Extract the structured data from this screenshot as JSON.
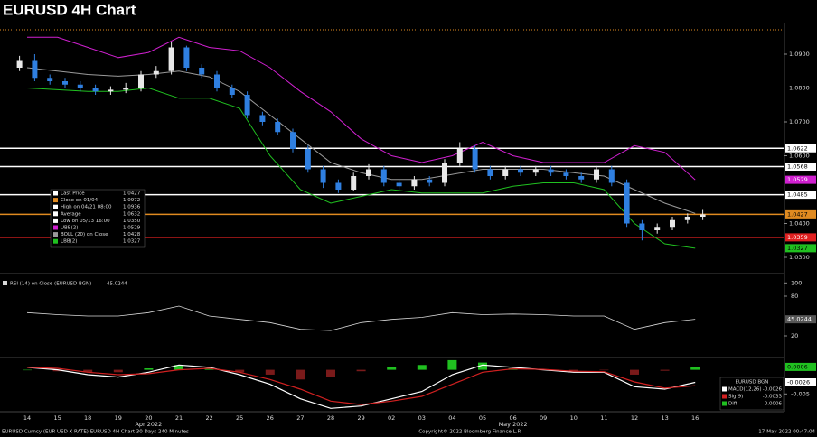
{
  "title": "EURUSD 4H Chart",
  "footer": {
    "left": "EURUSD Curncy (EUR-USD X-RATE) EURUSD 4H Chart 30 Days 240 Minutes",
    "center": "Copyright© 2022 Bloomberg Finance L.P.",
    "right": "17-May-2022 00:47:04"
  },
  "chart_data": [
    {
      "type": "candlestick",
      "categories": [
        "14",
        "15",
        "18",
        "19",
        "20",
        "21",
        "22",
        "25",
        "26",
        "27",
        "28",
        "29",
        "02",
        "03",
        "04",
        "05",
        "06",
        "09",
        "10",
        "11",
        "12",
        "13",
        "16"
      ],
      "months": [
        null,
        null,
        null,
        null,
        "Apr 2022",
        null,
        null,
        null,
        null,
        null,
        null,
        null,
        null,
        null,
        null,
        null,
        "May 2022",
        null,
        null,
        null,
        null,
        null,
        null
      ],
      "open": [
        1.086,
        1.088,
        1.083,
        1.082,
        1.081,
        1.08,
        1.079,
        1.0795,
        1.08,
        1.084,
        1.085,
        1.092,
        1.086,
        1.084,
        1.08,
        1.078,
        1.072,
        1.07,
        1.067,
        1.062,
        1.056,
        1.052,
        1.05,
        1.054,
        1.056,
        1.052,
        1.051,
        1.053,
        1.052,
        1.058,
        1.062,
        1.056,
        1.054,
        1.056,
        1.055,
        1.056,
        1.055,
        1.054,
        1.053,
        1.056,
        1.052,
        1.04,
        1.038,
        1.039,
        1.041,
        1.042
      ],
      "high": [
        1.0895,
        1.09,
        1.084,
        1.083,
        1.082,
        1.081,
        1.0805,
        1.0815,
        1.085,
        1.0865,
        1.0936,
        1.0925,
        1.087,
        1.085,
        1.081,
        1.079,
        1.073,
        1.071,
        1.068,
        1.063,
        1.057,
        1.053,
        1.055,
        1.0575,
        1.057,
        1.053,
        1.054,
        1.054,
        1.059,
        1.064,
        1.063,
        1.057,
        1.057,
        1.057,
        1.057,
        1.057,
        1.056,
        1.055,
        1.057,
        1.057,
        1.053,
        1.041,
        1.04,
        1.042,
        1.043,
        1.044
      ],
      "low": [
        1.085,
        1.082,
        1.081,
        1.08,
        1.079,
        1.078,
        1.078,
        1.0785,
        1.079,
        1.083,
        1.084,
        1.085,
        1.083,
        1.079,
        1.077,
        1.071,
        1.069,
        1.066,
        1.061,
        1.055,
        1.0505,
        1.049,
        1.0495,
        1.053,
        1.051,
        1.05,
        1.05,
        1.051,
        1.051,
        1.057,
        1.055,
        1.053,
        1.053,
        1.054,
        1.054,
        1.054,
        1.053,
        1.052,
        1.052,
        1.051,
        1.039,
        1.035,
        1.037,
        1.038,
        1.04,
        1.041
      ],
      "close": [
        1.088,
        1.083,
        1.082,
        1.081,
        1.08,
        1.079,
        1.0795,
        1.08,
        1.084,
        1.085,
        1.092,
        1.086,
        1.084,
        1.08,
        1.078,
        1.072,
        1.07,
        1.067,
        1.062,
        1.056,
        1.052,
        1.05,
        1.054,
        1.056,
        1.052,
        1.051,
        1.053,
        1.052,
        1.058,
        1.062,
        1.056,
        1.054,
        1.056,
        1.055,
        1.056,
        1.055,
        1.054,
        1.053,
        1.056,
        1.052,
        1.04,
        1.038,
        1.039,
        1.041,
        1.042,
        1.0427
      ],
      "up_color": "#e8e8e8",
      "down_color": "#2f7fe0",
      "bands": [
        {
          "color": "#d020d0",
          "values": [
            1.095,
            1.095,
            1.092,
            1.089,
            1.0905,
            1.095,
            1.092,
            1.091,
            1.086,
            1.079,
            1.073,
            1.065,
            1.06,
            1.058,
            1.06,
            1.064,
            1.06,
            1.058,
            1.058,
            1.058,
            1.063,
            1.061,
            1.0529
          ]
        },
        {
          "color": "#9a9a9a",
          "values": [
            1.086,
            1.085,
            1.084,
            1.0835,
            1.084,
            1.085,
            1.0833,
            1.079,
            1.072,
            1.065,
            1.058,
            1.055,
            1.053,
            1.053,
            1.0545,
            1.056,
            1.056,
            1.056,
            1.055,
            1.054,
            1.05,
            1.046,
            1.043
          ]
        },
        {
          "color": "#20c020",
          "values": [
            1.08,
            1.0795,
            1.079,
            1.079,
            1.08,
            1.077,
            1.077,
            1.074,
            1.06,
            1.05,
            1.046,
            1.048,
            1.05,
            1.049,
            1.049,
            1.049,
            1.051,
            1.052,
            1.052,
            1.05,
            1.04,
            1.034,
            1.0327
          ]
        }
      ],
      "ylim": [
        1.026,
        1.098
      ],
      "yticks": [
        {
          "value": 1.09,
          "label": "1.0900"
        },
        {
          "value": 1.08,
          "label": "1.0800"
        },
        {
          "value": 1.07,
          "label": "1.0700"
        },
        {
          "value": 1.06,
          "label": "1.0600"
        },
        {
          "value": 1.04,
          "label": "1.0400"
        },
        {
          "value": 1.03,
          "label": "1.0300"
        }
      ],
      "levels": [
        {
          "value": 1.0622,
          "color": "#ffffff"
        },
        {
          "value": 1.0568,
          "color": "#ffffff"
        },
        {
          "value": 1.0485,
          "color": "#ffffff"
        },
        {
          "value": 1.0427,
          "color": "#e08a20"
        },
        {
          "value": 1.0359,
          "color": "#e02020"
        }
      ],
      "legend": [
        {
          "name": "Last Price",
          "value": 1.0427,
          "color": "#ffffff"
        },
        {
          "name": "Close on 01/04 ----",
          "value": 1.0972,
          "color": "#e08a20"
        },
        {
          "name": "High on 04/21 08:00",
          "value": 1.0936,
          "color": "#ffffff"
        },
        {
          "name": "Average",
          "value": 1.0632,
          "color": "#ffffff"
        },
        {
          "name": "Low on 05/13 16:00",
          "value": {
            "value": 1.035,
            "label": "1.0350"
          },
          "color": "#ffffff"
        },
        {
          "name": "UBB(2)",
          "value": 1.0529,
          "color": "#d020d0"
        },
        {
          "name": "BOLL (20) on Close",
          "value": 1.0428,
          "color": "#9a9a9a"
        },
        {
          "name": "LBB(2)",
          "value": 1.0327,
          "color": "#20c020"
        }
      ]
    },
    {
      "type": "line",
      "series": [
        {
          "name": "RSI (14) on Close (EURUSD BGN)",
          "color": "#d8d8d8",
          "values": [
            55,
            52,
            50,
            50,
            55,
            65,
            50,
            45,
            40,
            30,
            28,
            40,
            45,
            48,
            55,
            52,
            53,
            52,
            50,
            50,
            30,
            40,
            45.0244
          ]
        }
      ],
      "ylim": [
        -10,
        110
      ],
      "yticks": [
        20,
        80,
        100
      ]
    },
    {
      "type": "macd",
      "legend_title": "EURUSD BGN",
      "series": [
        {
          "name": "MACD(12,26)",
          "color": "#ffffff",
          "values": [
            0.0005,
            0.0,
            -0.001,
            -0.0015,
            -0.0005,
            0.001,
            0.0005,
            -0.001,
            -0.003,
            -0.006,
            -0.008,
            -0.0075,
            -0.006,
            -0.0045,
            -0.001,
            0.001,
            0.0005,
            0.0,
            -0.0005,
            -0.0005,
            -0.0035,
            -0.004,
            -0.0026
          ]
        },
        {
          "name": "Sig(9)",
          "color": "#d02020",
          "values": [
            0.0005,
            0.0003,
            -0.0005,
            -0.001,
            -0.0008,
            0.0,
            0.0003,
            -0.0005,
            -0.002,
            -0.004,
            -0.0065,
            -0.0072,
            -0.0065,
            -0.0055,
            -0.003,
            -0.0005,
            0.0002,
            0.0001,
            -0.0003,
            -0.0004,
            -0.0025,
            -0.0038,
            -0.0033
          ]
        },
        {
          "name": "Diff",
          "color": "#20c020",
          "values": [
            0.0,
            -0.0003,
            -0.0005,
            -0.0005,
            0.0003,
            0.001,
            0.0002,
            -0.0005,
            -0.001,
            -0.002,
            -0.0015,
            -0.0003,
            0.0005,
            0.001,
            0.002,
            0.0015,
            0.0003,
            -0.0001,
            -0.0002,
            -0.0001,
            -0.001,
            -0.0002,
            0.0006
          ]
        }
      ],
      "ylim": [
        -0.0085,
        0.0018
      ],
      "yticks": [
        -0.005
      ]
    }
  ]
}
